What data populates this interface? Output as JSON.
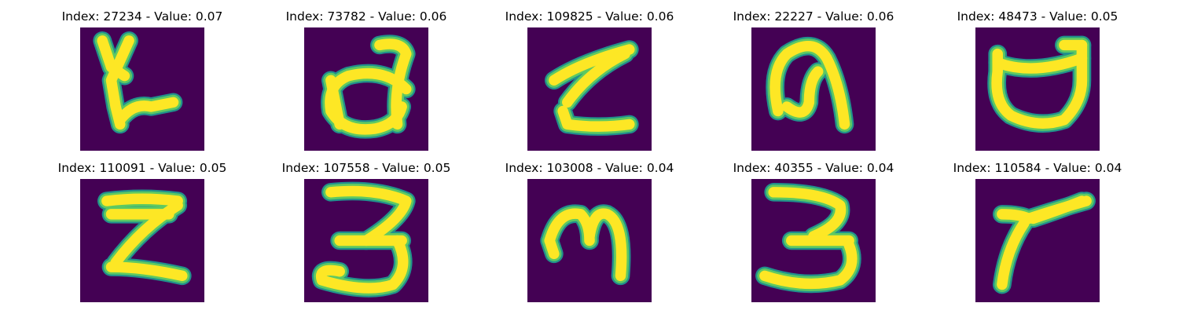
{
  "colors": {
    "background": "#440154",
    "stroke_outer": "#21918c",
    "stroke_mid": "#5ec962",
    "stroke_core": "#fde725"
  },
  "panels": [
    {
      "index_label": "Index: 27234 - Value: 0.07",
      "glyph": "ta"
    },
    {
      "index_label": "Index: 73782 - Value: 0.06",
      "glyph": "d-loop"
    },
    {
      "index_label": "Index: 109825 - Value: 0.06",
      "glyph": "z-scribble"
    },
    {
      "index_label": "Index: 22227 - Value: 0.06",
      "glyph": "n-arch"
    },
    {
      "index_label": "Index: 48473 - Value: 0.05",
      "glyph": "u-bowl"
    },
    {
      "index_label": "Index: 110091 - Value: 0.05",
      "glyph": "z-bold"
    },
    {
      "index_label": "Index: 107558 - Value: 0.05",
      "glyph": "three-thin"
    },
    {
      "index_label": "Index: 103008 - Value: 0.04",
      "glyph": "m-curl"
    },
    {
      "index_label": "Index: 40355 - Value: 0.04",
      "glyph": "three-wide"
    },
    {
      "index_label": "Index: 110584 - Value: 0.04",
      "glyph": "y-stroke"
    }
  ]
}
